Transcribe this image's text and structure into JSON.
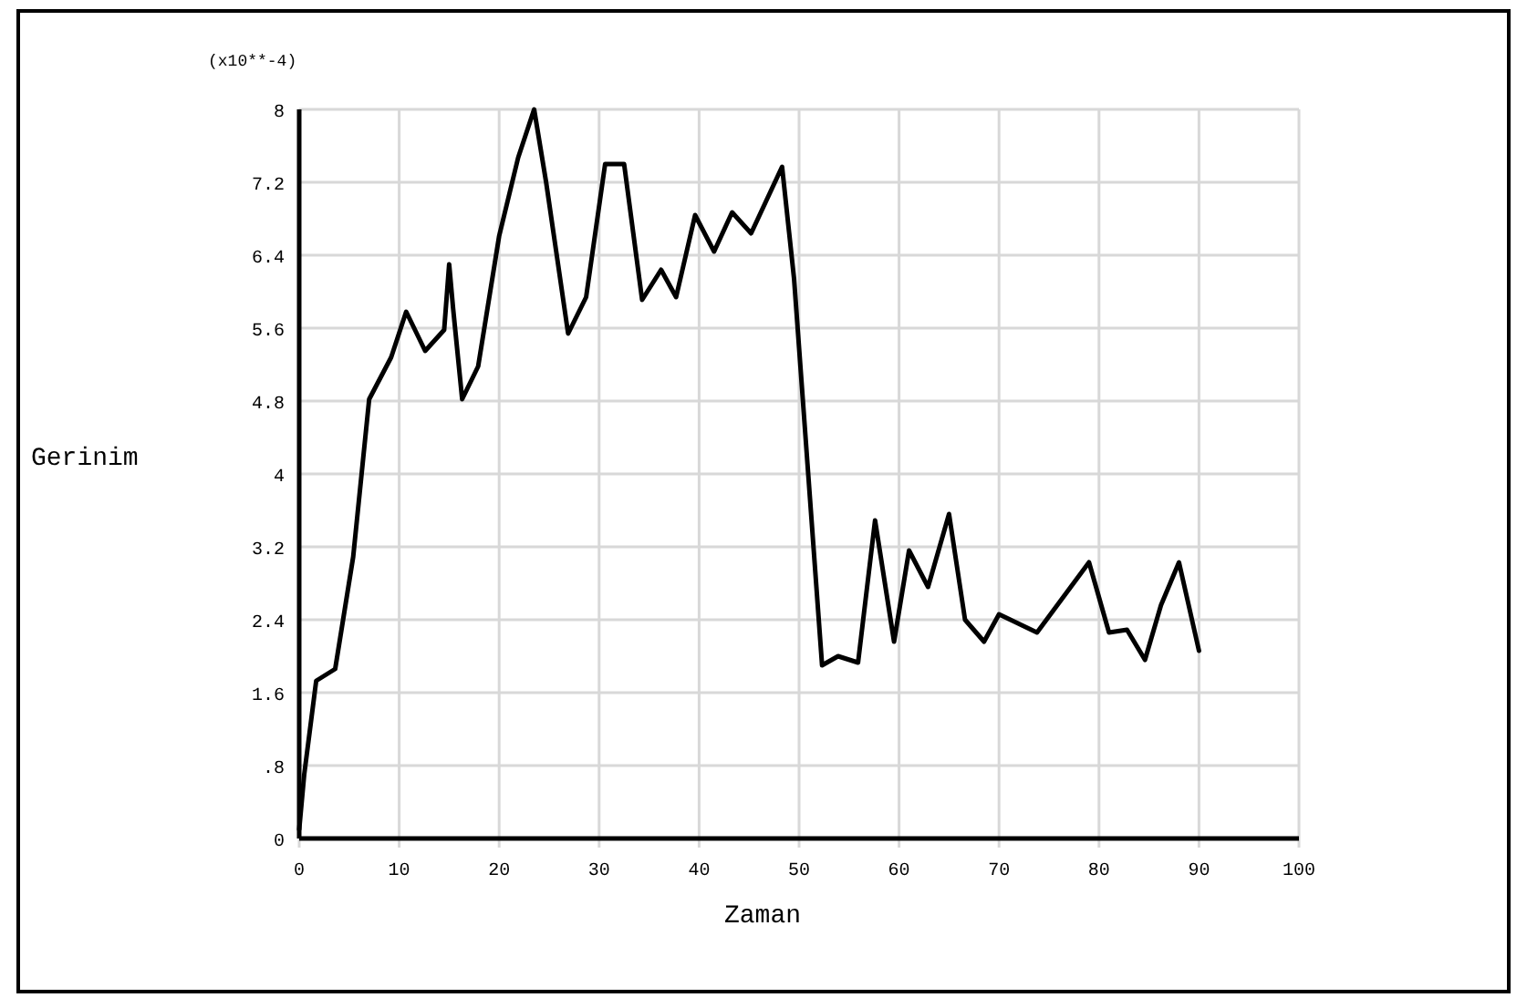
{
  "chart_data": {
    "type": "line",
    "xlabel": "Zaman",
    "ylabel": "Gerinim",
    "annotations": [
      "(x10**-4)"
    ],
    "x": [
      0,
      0.5,
      1.7,
      3.6,
      5.4,
      7.0,
      9.2,
      10.7,
      12.6,
      14.5,
      15.0,
      15.4,
      16.3,
      17.9,
      20.0,
      21.9,
      23.5,
      24.7,
      26.9,
      28.7,
      30.6,
      32.5,
      34.3,
      36.2,
      37.7,
      39.6,
      41.5,
      43.3,
      45.2,
      48.3,
      49.5,
      52.3,
      53.9,
      55.9,
      57.6,
      59.5,
      61.0,
      62.9,
      65.0,
      66.6,
      68.5,
      70.0,
      73.8,
      79.0,
      81.0,
      82.8,
      84.6,
      86.2,
      88.0,
      90.0
    ],
    "series": [
      {
        "color": "#000000",
        "values": [
          0.1,
          0.7,
          1.73,
          1.86,
          3.09,
          4.82,
          5.28,
          5.78,
          5.35,
          5.58,
          6.3,
          5.81,
          4.82,
          5.18,
          6.61,
          7.47,
          8.0,
          7.2,
          5.54,
          5.94,
          7.4,
          7.4,
          5.91,
          6.24,
          5.94,
          6.84,
          6.44,
          6.87,
          6.64,
          7.37,
          6.14,
          1.9,
          2.0,
          1.93,
          3.49,
          2.16,
          3.16,
          2.76,
          3.56,
          2.4,
          2.16,
          2.46,
          2.26,
          3.03,
          2.26,
          2.29,
          1.96,
          2.56,
          3.03,
          2.06
        ]
      }
    ],
    "xlim": [
      0,
      100
    ],
    "xticks": [
      0,
      10,
      20,
      30,
      40,
      50,
      60,
      70,
      80,
      90,
      100
    ],
    "ylim": [
      0,
      8
    ],
    "yticks": [
      0,
      {
        "value": 0.8,
        "label": ".8"
      },
      1.6,
      2.4,
      3.2,
      4,
      4.8,
      5.6,
      6.4,
      7.2,
      8
    ],
    "grid": true,
    "marker": "none",
    "line_style": "solid"
  }
}
